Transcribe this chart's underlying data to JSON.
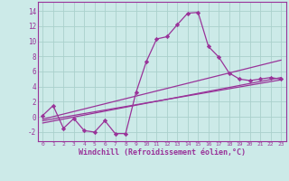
{
  "xlabel": "Windchill (Refroidissement éolien,°C)",
  "line_color": "#993399",
  "bg_color": "#cceae8",
  "grid_color": "#aad0cc",
  "spine_color": "#993399",
  "xlim": [
    -0.5,
    23.5
  ],
  "ylim": [
    -3.2,
    15.2
  ],
  "xticks": [
    0,
    1,
    2,
    3,
    4,
    5,
    6,
    7,
    8,
    9,
    10,
    11,
    12,
    13,
    14,
    15,
    16,
    17,
    18,
    19,
    20,
    21,
    22,
    23
  ],
  "yticks": [
    -2,
    0,
    2,
    4,
    6,
    8,
    10,
    12,
    14
  ],
  "series1_x": [
    0,
    1,
    2,
    3,
    4,
    5,
    6,
    7,
    8,
    9,
    10,
    11,
    12,
    13,
    14,
    15,
    16,
    17,
    18,
    19,
    20,
    21,
    22,
    23
  ],
  "series1_y": [
    0.2,
    1.5,
    -1.5,
    -0.2,
    -1.8,
    -2.0,
    -0.5,
    -2.2,
    -2.2,
    3.2,
    7.3,
    10.3,
    10.6,
    12.2,
    13.7,
    13.8,
    9.3,
    7.9,
    5.8,
    5.0,
    4.8,
    5.0,
    5.2,
    5.0
  ],
  "series2_x": [
    0,
    23
  ],
  "series2_y": [
    -0.3,
    7.5
  ],
  "series3_x": [
    0,
    23
  ],
  "series3_y": [
    -0.8,
    5.2
  ],
  "series4_x": [
    0,
    23
  ],
  "series4_y": [
    -0.5,
    4.9
  ],
  "marker": "D",
  "markersize": 2.2,
  "linewidth": 0.9
}
